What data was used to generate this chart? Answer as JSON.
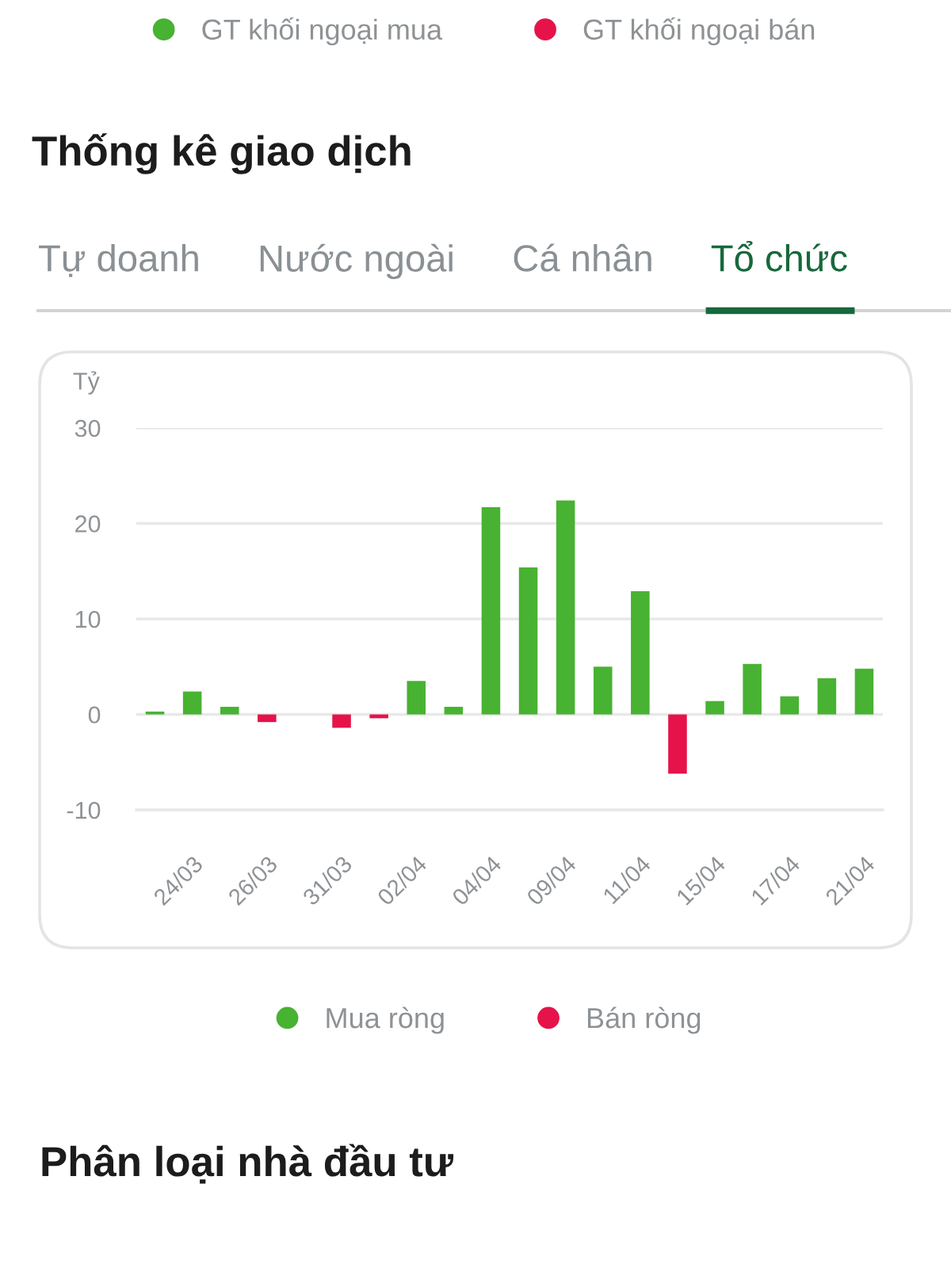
{
  "chart_data": [
    {
      "type": "other",
      "series": [
        {
          "name": "GT khối ngoại mua",
          "color": "#48b232"
        },
        {
          "name": "GT khối ngoại bán",
          "color": "#e6134a"
        }
      ],
      "legend": "top"
    },
    {
      "type": "bar",
      "title": "Thống kê giao dịch",
      "annotations": [
        "Tự doanh",
        "Nước ngoài",
        "Cá nhân",
        "Tổ chức"
      ],
      "ylabel": "Tỷ",
      "categories": [
        null,
        "24/03",
        null,
        "26/03",
        null,
        "31/03",
        null,
        "02/04",
        null,
        "04/04",
        null,
        "09/04",
        null,
        "11/04",
        null,
        "15/04",
        null,
        "17/04",
        null,
        "21/04"
      ],
      "series": [
        {
          "name": "Mua ròng",
          "color": "#48b232",
          "values": [
            0.3,
            2.4,
            0.8,
            null,
            null,
            null,
            null,
            3.5,
            0.8,
            21.7,
            15.4,
            22.4,
            5.0,
            12.9,
            null,
            1.4,
            5.3,
            1.9,
            3.8,
            4.8
          ]
        },
        {
          "name": "Bán ròng",
          "color": "#e6134a",
          "values": [
            null,
            null,
            null,
            -0.8,
            null,
            -1.4,
            -0.4,
            null,
            null,
            null,
            null,
            null,
            null,
            null,
            -6.2,
            null,
            null,
            null,
            null,
            null
          ]
        }
      ],
      "stacked": true,
      "ylim": [
        -10,
        30
      ],
      "yticks": [
        -10,
        0,
        10,
        20,
        30
      ],
      "grid": "y",
      "legend": "bottom"
    },
    {
      "type": "other",
      "title": "Phân loại nhà đầu tư"
    }
  ]
}
